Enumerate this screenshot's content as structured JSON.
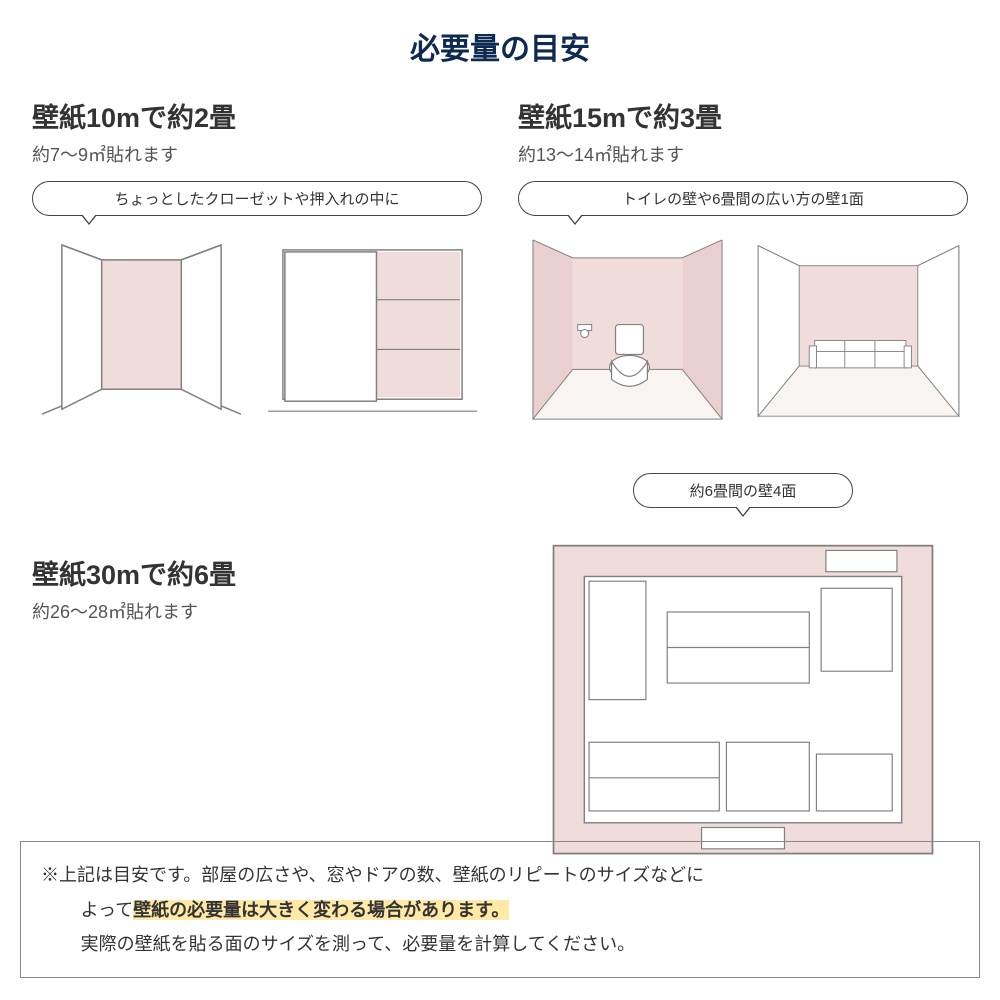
{
  "colors": {
    "title": "#0e2a52",
    "text": "#333333",
    "subtext": "#545454",
    "border": "#444444",
    "noteBorder": "#888888",
    "highlight": "#ffe9a6",
    "wall_pink": "#f1dcdc",
    "wall_pink_dark": "#e9cfcf",
    "line": "#808080",
    "floor": "#f7f4f1",
    "bg": "#ffffff"
  },
  "title": "必要量の目安",
  "sections": {
    "s10m": {
      "title": "壁紙10mで約2畳",
      "sub": "約7〜9㎡貼れます",
      "bubble": "ちょっとしたクローゼットや押入れの中に"
    },
    "s15m": {
      "title": "壁紙15mで約3畳",
      "sub": "約13〜14㎡貼れます",
      "bubble": "トイレの壁や6畳間の広い方の壁1面"
    },
    "s30m": {
      "title": "壁紙30mで約6畳",
      "sub": "約26〜28㎡貼れます",
      "bubble": "約6畳間の壁4面"
    }
  },
  "note": {
    "line1": "※上記は目安です。部屋の広さや、窓やドアの数、壁紙のリピートのサイズなどに",
    "line2_pre": "よって",
    "line2_hl": "壁紙の必要量は大きく変わる場合があります。",
    "line3": "実際の壁紙を貼る面のサイズを測って、必要量を計算してください。"
  }
}
